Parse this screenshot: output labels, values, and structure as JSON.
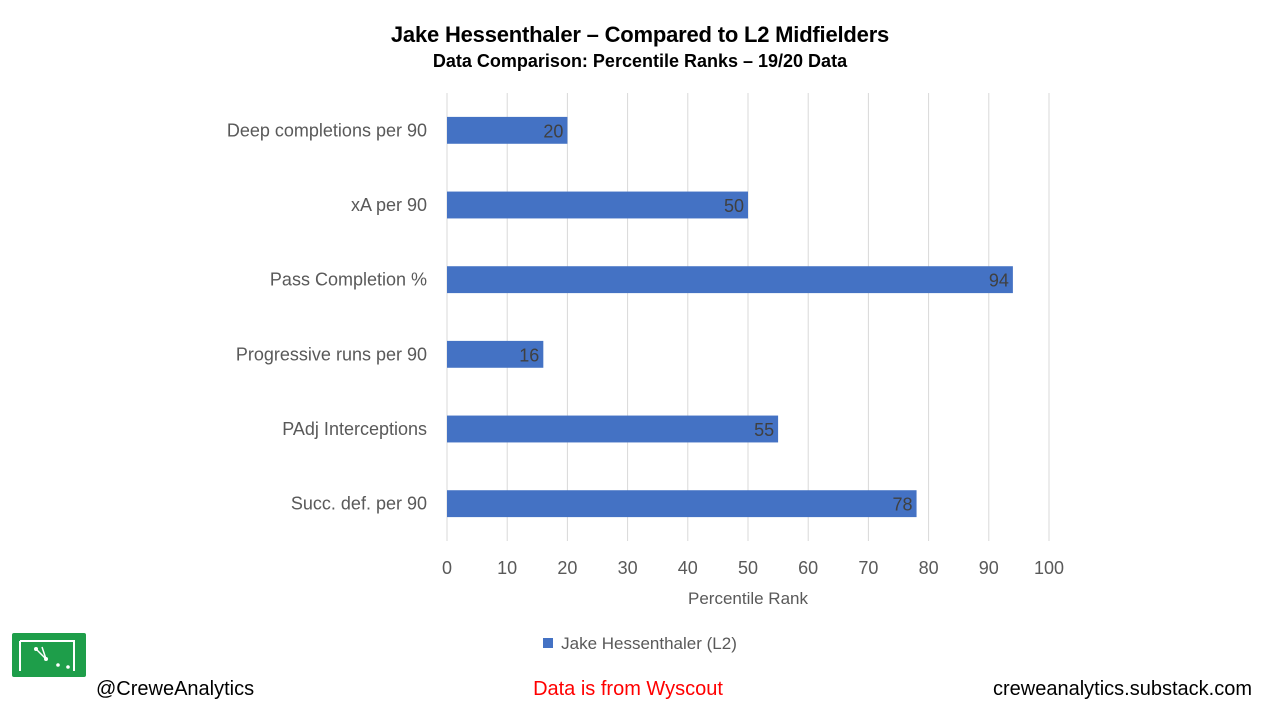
{
  "chart_data": {
    "type": "bar",
    "orientation": "horizontal",
    "title": "Jake Hessenthaler – Compared to L2 Midfielders",
    "subtitle": "Data Comparison: Percentile Ranks – 19/20 Data",
    "categories": [
      "Deep completions per 90",
      "xA per 90",
      "Pass Completion %",
      "Progressive runs per 90",
      "PAdj Interceptions",
      "Succ. def. per 90"
    ],
    "series": [
      {
        "name": "Jake Hessenthaler (L2)",
        "values": [
          20,
          50,
          94,
          16,
          55,
          78
        ]
      }
    ],
    "xlabel": "Percentile Rank",
    "ylabel": "",
    "xlim": [
      0,
      100
    ],
    "xticks": [
      "0",
      "10",
      "20",
      "30",
      "40",
      "50",
      "60",
      "70",
      "80",
      "90",
      "100"
    ],
    "grid": true,
    "legend_position": "bottom",
    "data_labels": true
  },
  "colors": {
    "bar": "#4472c4",
    "grid": "#d9d9d9",
    "source_text": "#ff0000",
    "logo_bg": "#1e9e4a"
  },
  "footer": {
    "handle": "@CreweAnalytics",
    "source": "Data is from Wyscout",
    "site": "creweanalytics.substack.com",
    "logo_icon": "crewe-analytics-logo"
  }
}
